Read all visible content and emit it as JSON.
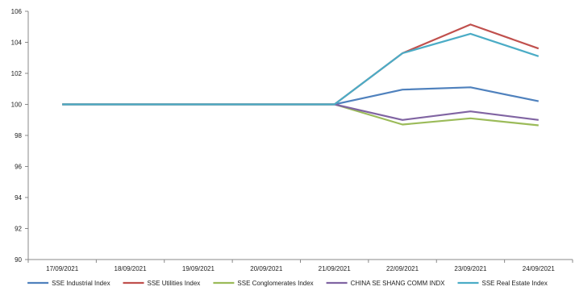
{
  "chart_data": {
    "type": "line",
    "title": "",
    "xlabel": "",
    "ylabel": "",
    "categories": [
      "17/09/2021",
      "18/09/2021",
      "19/09/2021",
      "20/09/2021",
      "21/09/2021",
      "22/09/2021",
      "23/09/2021",
      "24/09/2021"
    ],
    "ylim": [
      90,
      106
    ],
    "yticks": [
      90,
      92,
      94,
      96,
      98,
      100,
      102,
      104,
      106
    ],
    "grid": false,
    "legend_position": "bottom",
    "series": [
      {
        "name": "SSE Industrial Index",
        "color": "#4F81BD",
        "values": [
          100,
          100,
          100,
          100,
          100,
          100.95,
          101.1,
          100.2
        ]
      },
      {
        "name": "SSE Utilities Index",
        "color": "#C0504D",
        "values": [
          100,
          100,
          100,
          100,
          100,
          103.3,
          105.15,
          103.6
        ]
      },
      {
        "name": "SSE Conglomerates Index",
        "color": "#9BBB59",
        "values": [
          100,
          100,
          100,
          100,
          100,
          98.7,
          99.1,
          98.65
        ]
      },
      {
        "name": "CHINA SE SHANG COMM INDX",
        "color": "#8064A2",
        "values": [
          100,
          100,
          100,
          100,
          100,
          99.0,
          99.55,
          99.0
        ]
      },
      {
        "name": "SSE Real Estate Index",
        "color": "#4BACC6",
        "values": [
          100,
          100,
          100,
          100,
          100,
          103.3,
          104.55,
          103.1
        ]
      }
    ]
  }
}
